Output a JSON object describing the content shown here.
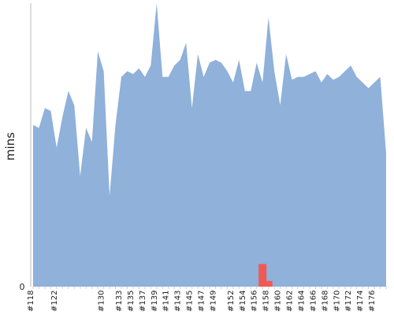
{
  "chart_data": {
    "type": "area",
    "ylabel": "mins",
    "ylim": [
      0,
      100
    ],
    "grid": false,
    "series": [
      {
        "color": "#8fb1da",
        "highlight_color": "#f05a55",
        "highlight_indices": [
          39,
          40
        ]
      }
    ],
    "x": [
      "#118",
      "#119",
      "#120",
      "#121",
      "#122",
      "#123",
      "#124",
      "#125",
      "#126",
      "#127",
      "#128",
      "#129",
      "#130",
      "#131",
      "#132",
      "#133",
      "#134",
      "#135",
      "#136",
      "#137",
      "#138",
      "#139",
      "#140",
      "#141",
      "#142",
      "#143",
      "#144",
      "#145",
      "#146",
      "#147",
      "#148",
      "#149",
      "#150",
      "#151",
      "#152",
      "#153",
      "#154",
      "#155",
      "#156",
      "#157",
      "#158",
      "#159",
      "#160",
      "#161",
      "#162",
      "#163",
      "#164",
      "#165",
      "#166",
      "#167",
      "#168",
      "#169",
      "#170",
      "#171",
      "#172",
      "#173",
      "#174",
      "#175",
      "#176",
      "#177",
      "#178"
    ],
    "values": [
      57,
      56,
      63,
      62,
      49,
      60,
      69,
      64,
      39,
      56,
      51,
      83,
      76,
      32,
      57,
      74,
      76,
      75,
      77,
      74,
      78,
      109,
      74,
      74,
      78,
      80,
      86,
      63,
      82,
      74,
      79,
      80,
      79,
      76,
      72,
      80,
      69,
      69,
      79,
      72,
      95,
      76,
      64,
      82,
      73,
      74,
      74,
      75,
      76,
      72,
      75,
      73,
      74,
      76,
      78,
      74,
      72,
      70,
      72,
      74,
      47
    ],
    "highlight_values": [
      8,
      2
    ],
    "xtick_labels": [
      "#118",
      "#122",
      "#130",
      "#133",
      "#135",
      "#137",
      "#139",
      "#141",
      "#143",
      "#145",
      "#147",
      "#149",
      "#152",
      "#154",
      "#156",
      "#158",
      "#160",
      "#162",
      "#164",
      "#166",
      "#168",
      "#170",
      "#172",
      "#174",
      "#176"
    ],
    "ytick_labels": [
      "0"
    ]
  }
}
